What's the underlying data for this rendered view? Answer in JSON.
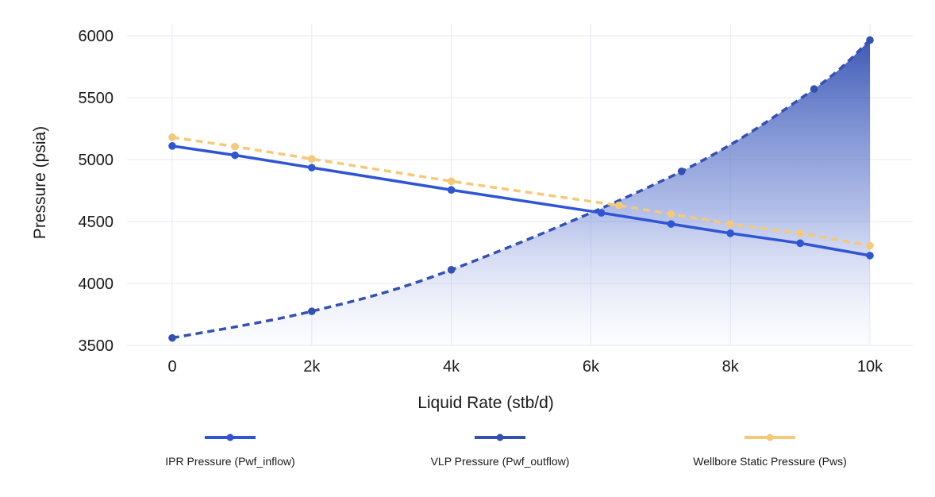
{
  "chart_data": {
    "type": "line",
    "xlabel": "Liquid Rate (stb/d)",
    "ylabel": "Pressure (psia)",
    "xlim": [
      -300,
      10300
    ],
    "ylim": [
      3500,
      6100
    ],
    "x_ticks": [
      0,
      2000,
      4000,
      6000,
      8000,
      10000
    ],
    "x_tick_labels": [
      "0",
      "2k",
      "4k",
      "6k",
      "8k",
      "10k"
    ],
    "y_ticks": [
      3500,
      4000,
      4500,
      5000,
      5500,
      6000
    ],
    "y_tick_labels": [
      "3500",
      "4000",
      "4500",
      "5000",
      "5500",
      "6000"
    ],
    "grid": true,
    "legend_position": "bottom",
    "series": [
      {
        "name": "IPR Pressure (Pwf_inflow)",
        "color": "#2f55d4",
        "line_style": "solid",
        "x": [
          0,
          900,
          2000,
          4000,
          6150,
          7150,
          8000,
          9000,
          10000
        ],
        "y": [
          5110,
          5035,
          4935,
          4755,
          4570,
          4480,
          4405,
          4325,
          4225
        ]
      },
      {
        "name": "VLP Pressure (Pwf_outflow)",
        "color": "#3451b2",
        "line_style": "dashed",
        "area_fill": true,
        "x": [
          0,
          2000,
          4000,
          7300,
          9200,
          10000
        ],
        "y": [
          3560,
          3775,
          4110,
          4905,
          5570,
          5965
        ]
      },
      {
        "name": "Wellbore Static Pressure (Pws)",
        "color": "#f4c97a",
        "line_style": "dashed",
        "x": [
          0,
          900,
          2000,
          4000,
          6400,
          7150,
          8000,
          9000,
          10000
        ],
        "y": [
          5180,
          5105,
          5005,
          4825,
          4630,
          4560,
          4480,
          4405,
          4305
        ]
      }
    ]
  }
}
